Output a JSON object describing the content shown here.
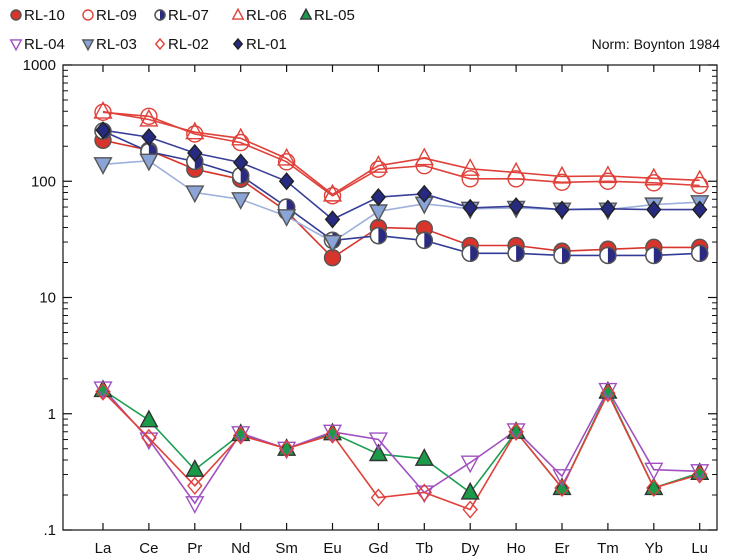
{
  "chart_data": {
    "type": "line",
    "subtitle": "Norm: Boynton 1984",
    "xlabel": "",
    "ylabel": "",
    "y_scale": "log",
    "ylim": [
      0.1,
      1000
    ],
    "y_ticks": [
      0.1,
      1,
      10,
      100,
      1000
    ],
    "y_tick_labels": [
      ".1",
      "1",
      "10",
      "100",
      "1000"
    ],
    "grid": false,
    "legend_position": "top",
    "categories": [
      "La",
      "Ce",
      "Pr",
      "Nd",
      "Sm",
      "Eu",
      "Gd",
      "Tb",
      "Dy",
      "Ho",
      "Er",
      "Tm",
      "Yb",
      "Lu"
    ],
    "series": [
      {
        "name": "RL-10",
        "marker": "circle-filled",
        "line_color": "#d8342c",
        "fill": "#d8342c",
        "stroke": "#555555",
        "values": [
          225,
          185,
          127,
          104,
          55,
          22,
          40,
          39,
          28,
          28,
          25,
          26,
          27,
          27
        ]
      },
      {
        "name": "RL-09",
        "marker": "circle-open",
        "line_color": "#e0413a",
        "fill": "none",
        "stroke": "#e0413a",
        "values": [
          392,
          362,
          255,
          215,
          147,
          75,
          127,
          136,
          105,
          105,
          98,
          100,
          97,
          92
        ]
      },
      {
        "name": "RL-07",
        "marker": "circle-half",
        "line_color": "#323c96",
        "fill": "#2a2a80",
        "stroke": "#555555",
        "values": [
          270,
          180,
          148,
          112,
          60,
          31,
          34,
          31,
          24,
          24,
          23,
          23,
          23,
          24
        ]
      },
      {
        "name": "RL-06",
        "marker": "triangle-up-open",
        "line_color": "#e0413a",
        "fill": "none",
        "stroke": "#e0413a",
        "values": [
          397,
          340,
          264,
          234,
          157,
          77,
          136,
          158,
          128,
          119,
          110,
          111,
          106,
          102
        ]
      },
      {
        "name": "RL-05",
        "marker": "triangle-up-filled",
        "line_color": "#1a9e50",
        "fill": "#1b9a4a",
        "stroke": "#333333",
        "values": [
          1.6,
          0.88,
          0.33,
          0.67,
          0.5,
          0.68,
          0.45,
          0.41,
          0.21,
          0.7,
          0.23,
          1.55,
          0.23,
          0.31
        ]
      },
      {
        "name": "RL-04",
        "marker": "triangle-down-open",
        "line_color": "#a050c0",
        "fill": "none",
        "stroke": "#a050c0",
        "values": [
          1.65,
          0.6,
          0.17,
          0.68,
          0.5,
          0.7,
          0.6,
          0.21,
          0.38,
          0.72,
          0.29,
          1.6,
          0.33,
          0.32
        ]
      },
      {
        "name": "RL-03",
        "marker": "triangle-down-filled",
        "line_color": "#9eb0dc",
        "fill": "#8aa4d8",
        "stroke": "#555555",
        "values": [
          140,
          150,
          80,
          70,
          50,
          30,
          55,
          64,
          58,
          59,
          57,
          57,
          63,
          66
        ]
      },
      {
        "name": "RL-02",
        "marker": "diamond-open",
        "line_color": "#e0413a",
        "fill": "none",
        "stroke": "#e0413a",
        "values": [
          1.55,
          0.62,
          0.24,
          0.65,
          0.5,
          0.66,
          0.19,
          0.21,
          0.15,
          0.7,
          0.23,
          1.5,
          0.23,
          0.3
        ]
      },
      {
        "name": "RL-01",
        "marker": "diamond-filled",
        "line_color": "#3a3f9a",
        "fill": "#262a80",
        "stroke": "#222222",
        "values": [
          275,
          240,
          175,
          145,
          100,
          47,
          73,
          78,
          59,
          61,
          57,
          58,
          57,
          57
        ]
      }
    ]
  }
}
